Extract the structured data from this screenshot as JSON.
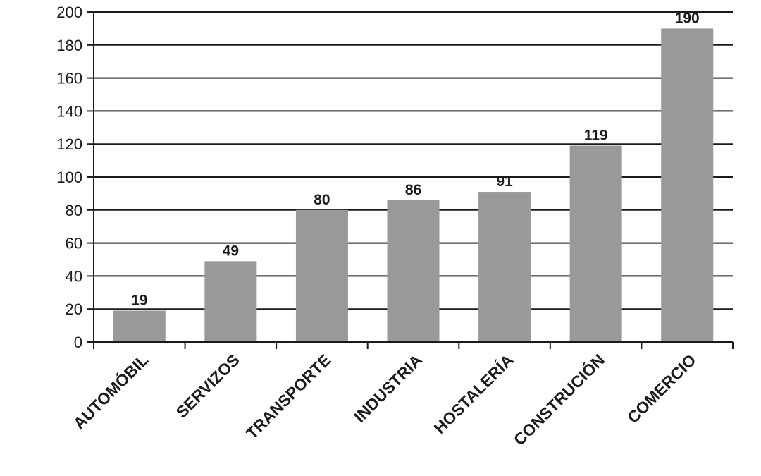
{
  "chart_data": {
    "type": "bar",
    "categories": [
      "AUTOMÓBIL",
      "SERVIZOS",
      "TRANSPORTE",
      "INDUSTRIA",
      "HOSTALERÍA",
      "CONSTRUCIÓN",
      "COMERCIO"
    ],
    "values": [
      19,
      49,
      80,
      86,
      91,
      119,
      190
    ],
    "data_labels": [
      "19",
      "49",
      "80",
      "86",
      "91",
      "119",
      "190"
    ],
    "ylim": [
      0,
      200
    ],
    "y_ticks": [
      0,
      20,
      40,
      60,
      80,
      100,
      120,
      140,
      160,
      180,
      200
    ],
    "y_tick_labels": [
      "0",
      "20",
      "40",
      "60",
      "80",
      "100",
      "120",
      "140",
      "160",
      "180",
      "200"
    ],
    "grid": true,
    "bar_color": "#999999",
    "grid_color": "#1a1a1a",
    "title": "",
    "xlabel": "",
    "ylabel": ""
  }
}
